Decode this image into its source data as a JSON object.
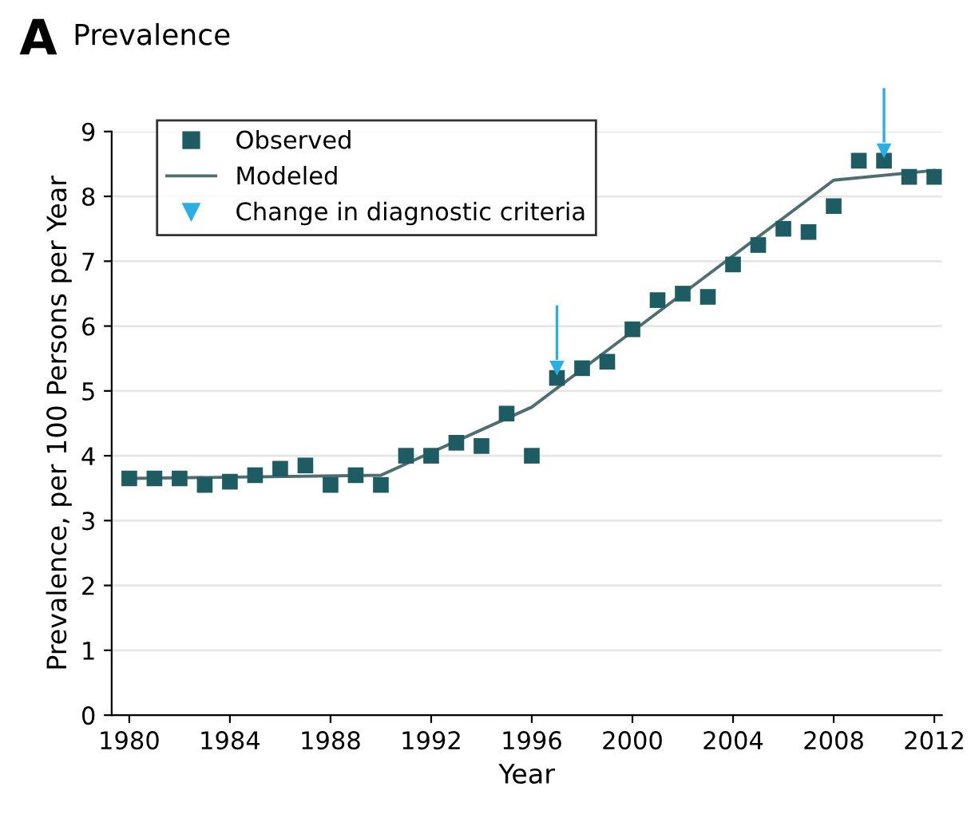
{
  "chart_data": {
    "type": "scatter",
    "title": "Prevalence",
    "xlabel": "Year",
    "ylabel": "Prevalence, per 100 Persons per Year",
    "annotations": [
      "A"
    ],
    "series": [
      {
        "name": "Observed",
        "marker": "square",
        "color": "#1d5c63",
        "x": [
          1980,
          1981,
          1982,
          1983,
          1984,
          1985,
          1986,
          1987,
          1988,
          1989,
          1990,
          1991,
          1992,
          1993,
          1994,
          1995,
          1996,
          1997,
          1998,
          1999,
          2000,
          2001,
          2002,
          2003,
          2004,
          2005,
          2006,
          2007,
          2008,
          2009,
          2010,
          2011,
          2012
        ],
        "values": [
          3.65,
          3.65,
          3.65,
          3.55,
          3.6,
          3.7,
          3.8,
          3.85,
          3.55,
          3.7,
          3.55,
          4.0,
          4.0,
          4.2,
          4.15,
          4.65,
          4.0,
          5.2,
          5.35,
          5.45,
          5.95,
          6.4,
          6.5,
          6.45,
          6.95,
          7.25,
          7.5,
          7.45,
          7.85,
          8.55,
          8.55,
          8.3,
          8.3
        ]
      },
      {
        "name": "Modeled",
        "type": "line",
        "color": "#4f6e72",
        "x": [
          1980,
          1990,
          1996,
          2008,
          2012
        ],
        "values": [
          3.65,
          3.7,
          4.75,
          8.25,
          8.4
        ]
      },
      {
        "name": "Change in diagnostic criteria",
        "marker": "triangle",
        "color": "#29aee6",
        "x": [
          1997,
          2010
        ],
        "values": [
          5.35,
          8.7
        ]
      }
    ],
    "xlim": [
      1979.3,
      2012.3
    ],
    "xticks": [
      1980,
      1984,
      1988,
      1992,
      1996,
      2000,
      2004,
      2008,
      2012
    ],
    "ylim": [
      0,
      9
    ],
    "yticks": [
      0,
      1,
      2,
      3,
      4,
      5,
      6,
      7,
      8,
      9
    ],
    "grid": "y",
    "legend": "top left"
  }
}
